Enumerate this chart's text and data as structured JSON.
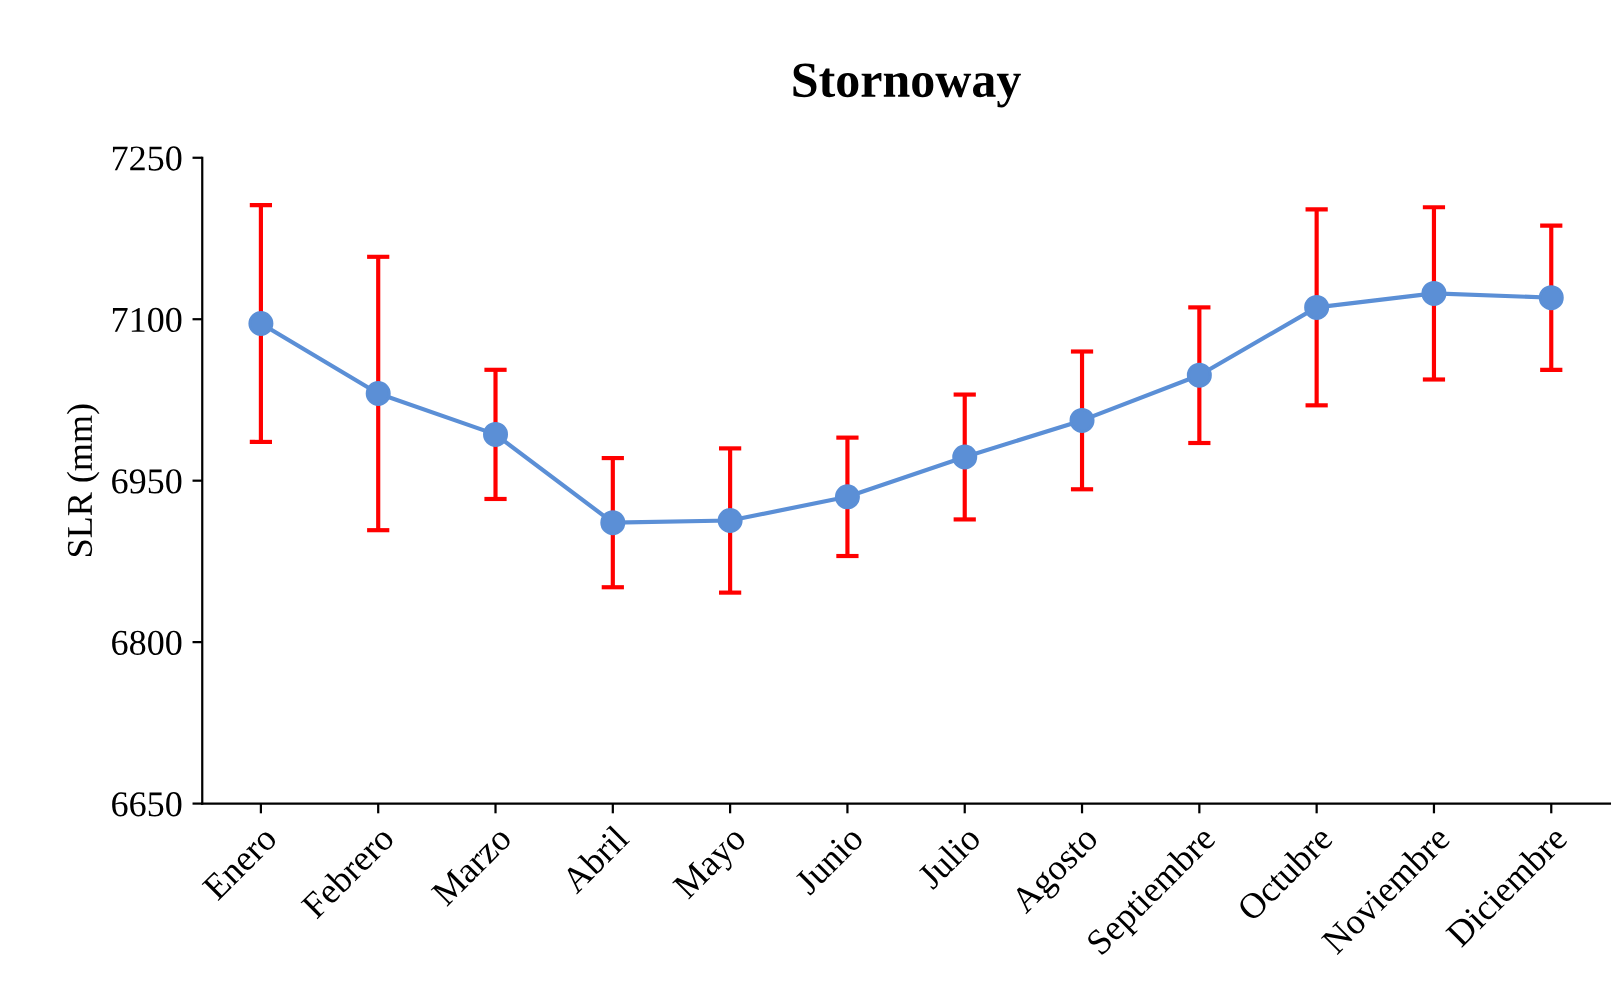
{
  "chart_data": {
    "type": "line",
    "title": "Stornoway",
    "ylabel": "SLR (mm)",
    "categories": [
      "Enero",
      "Febrero",
      "Marzo",
      "Abril",
      "Mayo",
      "Junio",
      "Julio",
      "Agosto",
      "Septiembre",
      "Octubre",
      "Noviembre",
      "Diciembre"
    ],
    "series": [
      {
        "color": "#5b8fd6",
        "values": [
          7096,
          7031,
          6993,
          6911,
          6913,
          6935,
          6972,
          7006,
          7048,
          7111,
          7124,
          7120
        ],
        "errors": [
          110,
          127,
          60,
          60,
          67,
          55,
          58,
          64,
          63,
          91,
          80,
          67
        ]
      }
    ],
    "ylim": [
      6650,
      7250
    ],
    "yticks": [
      6650,
      6800,
      6950,
      7100,
      7250
    ],
    "grid": false,
    "legend": false,
    "marker": "circle",
    "line_style": "solid"
  }
}
